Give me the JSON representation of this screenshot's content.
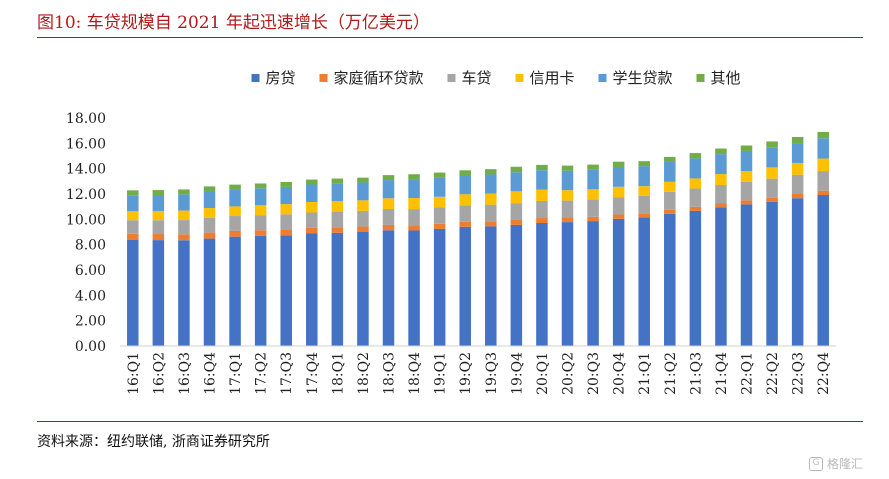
{
  "header": {
    "title": "图10:   车贷规模自 2021 年起迅速增长（万亿美元）"
  },
  "footer": {
    "source": "资料来源：纽约联储, 浙商证券研究所",
    "watermark": "格隆汇"
  },
  "chart_data": {
    "type": "bar",
    "stacked": true,
    "categories": [
      "16:Q1",
      "16:Q2",
      "16:Q3",
      "16:Q4",
      "17:Q1",
      "17:Q2",
      "17:Q3",
      "17:Q4",
      "18:Q1",
      "18:Q2",
      "18:Q3",
      "18:Q4",
      "19:Q1",
      "19:Q2",
      "19:Q3",
      "19:Q4",
      "20:Q1",
      "20:Q2",
      "20:Q3",
      "20:Q4",
      "21:Q1",
      "21:Q2",
      "21:Q3",
      "21:Q4",
      "22:Q1",
      "22:Q2",
      "22:Q3",
      "22:Q4"
    ],
    "series": [
      {
        "name": "房贷",
        "color": "#4472c4",
        "values": [
          8.37,
          8.36,
          8.35,
          8.48,
          8.63,
          8.69,
          8.74,
          8.88,
          8.94,
          9.0,
          9.14,
          9.12,
          9.24,
          9.41,
          9.44,
          9.56,
          9.71,
          9.78,
          9.86,
          10.04,
          10.16,
          10.44,
          10.67,
          10.93,
          11.18,
          11.39,
          11.67,
          11.92
        ]
      },
      {
        "name": "家庭循环贷款",
        "color": "#ed7d31",
        "values": [
          0.49,
          0.48,
          0.47,
          0.47,
          0.46,
          0.45,
          0.45,
          0.44,
          0.44,
          0.43,
          0.42,
          0.42,
          0.41,
          0.4,
          0.4,
          0.39,
          0.39,
          0.36,
          0.34,
          0.34,
          0.32,
          0.32,
          0.32,
          0.32,
          0.32,
          0.32,
          0.33,
          0.34
        ]
      },
      {
        "name": "车贷",
        "color": "#a5a5a5",
        "values": [
          1.07,
          1.09,
          1.12,
          1.16,
          1.17,
          1.19,
          1.21,
          1.22,
          1.23,
          1.24,
          1.26,
          1.27,
          1.28,
          1.3,
          1.32,
          1.33,
          1.35,
          1.34,
          1.36,
          1.37,
          1.37,
          1.41,
          1.44,
          1.46,
          1.47,
          1.5,
          1.52,
          1.55
        ]
      },
      {
        "name": "信用卡",
        "color": "#ffc000",
        "values": [
          0.71,
          0.73,
          0.75,
          0.78,
          0.76,
          0.78,
          0.8,
          0.83,
          0.82,
          0.83,
          0.84,
          0.87,
          0.85,
          0.87,
          0.88,
          0.93,
          0.89,
          0.82,
          0.81,
          0.82,
          0.77,
          0.79,
          0.8,
          0.86,
          0.84,
          0.89,
          0.93,
          0.99
        ]
      },
      {
        "name": "学生贷款",
        "color": "#5b9bd5",
        "values": [
          1.26,
          1.26,
          1.28,
          1.31,
          1.34,
          1.34,
          1.36,
          1.38,
          1.41,
          1.41,
          1.44,
          1.46,
          1.49,
          1.48,
          1.5,
          1.51,
          1.54,
          1.54,
          1.55,
          1.56,
          1.58,
          1.57,
          1.58,
          1.58,
          1.59,
          1.59,
          1.57,
          1.6
        ]
      },
      {
        "name": "其他",
        "color": "#70ad47",
        "values": [
          0.39,
          0.39,
          0.39,
          0.4,
          0.38,
          0.38,
          0.39,
          0.39,
          0.38,
          0.38,
          0.39,
          0.42,
          0.42,
          0.41,
          0.42,
          0.43,
          0.42,
          0.4,
          0.4,
          0.42,
          0.39,
          0.4,
          0.42,
          0.44,
          0.43,
          0.46,
          0.48,
          0.5
        ]
      }
    ],
    "yticks": [
      "0.00",
      "2.00",
      "4.00",
      "6.00",
      "8.00",
      "10.00",
      "12.00",
      "14.00",
      "16.00",
      "18.00"
    ],
    "ylim": [
      0,
      18
    ],
    "legend_position": "top",
    "grid": false
  }
}
